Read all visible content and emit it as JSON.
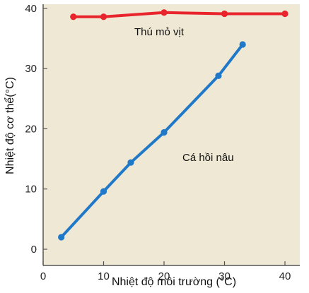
{
  "chart_data": {
    "type": "line",
    "xlabel": "Nhiệt độ môi trường (°C)",
    "ylabel": "Nhiệt độ cơ thể(°C)",
    "xlim": [
      0,
      42
    ],
    "ylim": [
      0,
      40
    ],
    "x_ticks": [
      0,
      10,
      20,
      30,
      40
    ],
    "y_ticks": [
      0,
      10,
      20,
      30,
      40
    ],
    "x_tick_labels": [
      "0",
      "10",
      "20",
      "30",
      "40"
    ],
    "y_tick_labels": [
      "0",
      "10",
      "20",
      "30",
      "40"
    ],
    "plot_background": "#efe8d4",
    "grid": false,
    "series": [
      {
        "name": "Thú mỏ vịt",
        "color": "#e8242c",
        "points": [
          {
            "x": 5,
            "y": 38.6
          },
          {
            "x": 10,
            "y": 38.6
          },
          {
            "x": 20,
            "y": 39.3
          },
          {
            "x": 30,
            "y": 39.1
          },
          {
            "x": 40,
            "y": 39.1
          }
        ]
      },
      {
        "name": "Cá hồi nâu",
        "color": "#1f78c8",
        "points": [
          {
            "x": 3,
            "y": 2
          },
          {
            "x": 10,
            "y": 9.6
          },
          {
            "x": 14.5,
            "y": 14.4
          },
          {
            "x": 20,
            "y": 19.4
          },
          {
            "x": 29,
            "y": 28.8
          },
          {
            "x": 33,
            "y": 34
          }
        ]
      }
    ]
  }
}
